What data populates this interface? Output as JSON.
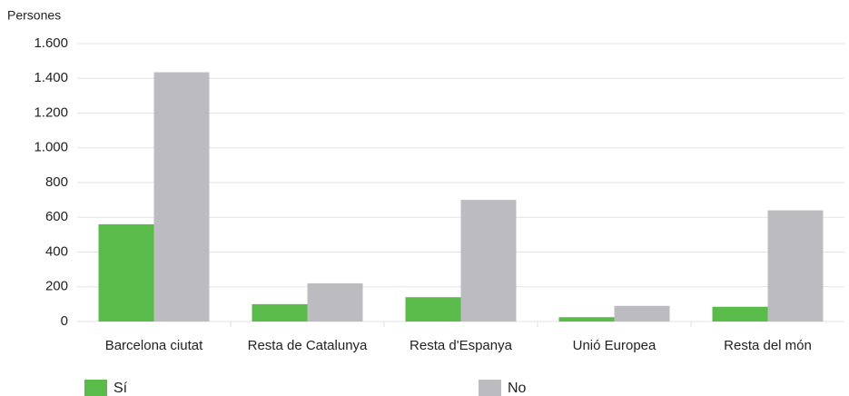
{
  "chart_data": {
    "type": "bar",
    "y_label": "Persones",
    "categories": [
      "Barcelona ciutat",
      "Resta de Catalunya",
      "Resta d'Espanya",
      "Unió Europea",
      "Resta del món"
    ],
    "series": [
      {
        "name": "Sí",
        "color": "#5bbb4a",
        "values": [
          560,
          100,
          140,
          25,
          85
        ]
      },
      {
        "name": "No",
        "color": "#bcbcc0",
        "values": [
          1435,
          220,
          700,
          90,
          640
        ]
      }
    ],
    "ylim": [
      0,
      1600
    ],
    "yticks": [
      0,
      200,
      400,
      600,
      800,
      {
        "value": 1000,
        "label": "1.000"
      },
      {
        "value": 1200,
        "label": "1.200"
      },
      {
        "value": 1400,
        "label": "1.400"
      },
      {
        "value": 1600,
        "label": "1.600"
      }
    ],
    "grid": true
  }
}
